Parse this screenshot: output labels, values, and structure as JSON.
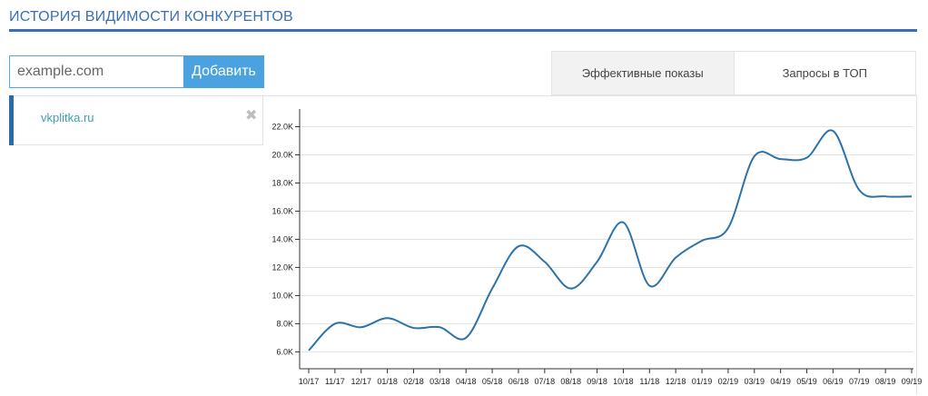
{
  "header": {
    "title": "ИСТОРИЯ ВИДИМОСТИ КОНКУРЕНТОВ"
  },
  "add_form": {
    "placeholder": "example.com",
    "button_label": "Добавить"
  },
  "competitors": [
    {
      "domain": "vkplitka.ru"
    }
  ],
  "tabs": [
    {
      "label": "Эффективные показы",
      "active": true
    },
    {
      "label": "Запросы в ТОП",
      "active": false
    }
  ],
  "colors": {
    "accent": "#3a6fb5",
    "button": "#4aa3e0",
    "line": "#2b73a8"
  },
  "icons": {
    "remove": "close-x-icon"
  },
  "chart_data": {
    "type": "line",
    "title": "",
    "xlabel": "",
    "ylabel": "",
    "grid": true,
    "categories": [
      "10/17",
      "11/17",
      "12/17",
      "01/18",
      "02/18",
      "03/18",
      "04/18",
      "05/18",
      "06/18",
      "07/18",
      "08/18",
      "09/18",
      "10/18",
      "11/18",
      "12/18",
      "01/19",
      "02/19",
      "03/19",
      "04/19",
      "05/19",
      "06/19",
      "07/19",
      "08/19",
      "09/19"
    ],
    "series": [
      {
        "values": [
          6100,
          8000,
          7750,
          8400,
          7700,
          7750,
          7000,
          10500,
          13500,
          12400,
          10500,
          12400,
          15200,
          10700,
          12700,
          13900,
          14800,
          19900,
          19700,
          19800,
          21700,
          17500,
          17050,
          17050
        ]
      }
    ],
    "yticks": [
      6000,
      8000,
      10000,
      12000,
      14000,
      16000,
      18000,
      20000,
      22000
    ],
    "ytick_labels": [
      "6.0K",
      "8.0K",
      "10.0K",
      "12.0K",
      "14.0K",
      "16.0K",
      "18.0K",
      "20.0K",
      "22.0K"
    ],
    "ylim": [
      4800,
      23000
    ]
  }
}
